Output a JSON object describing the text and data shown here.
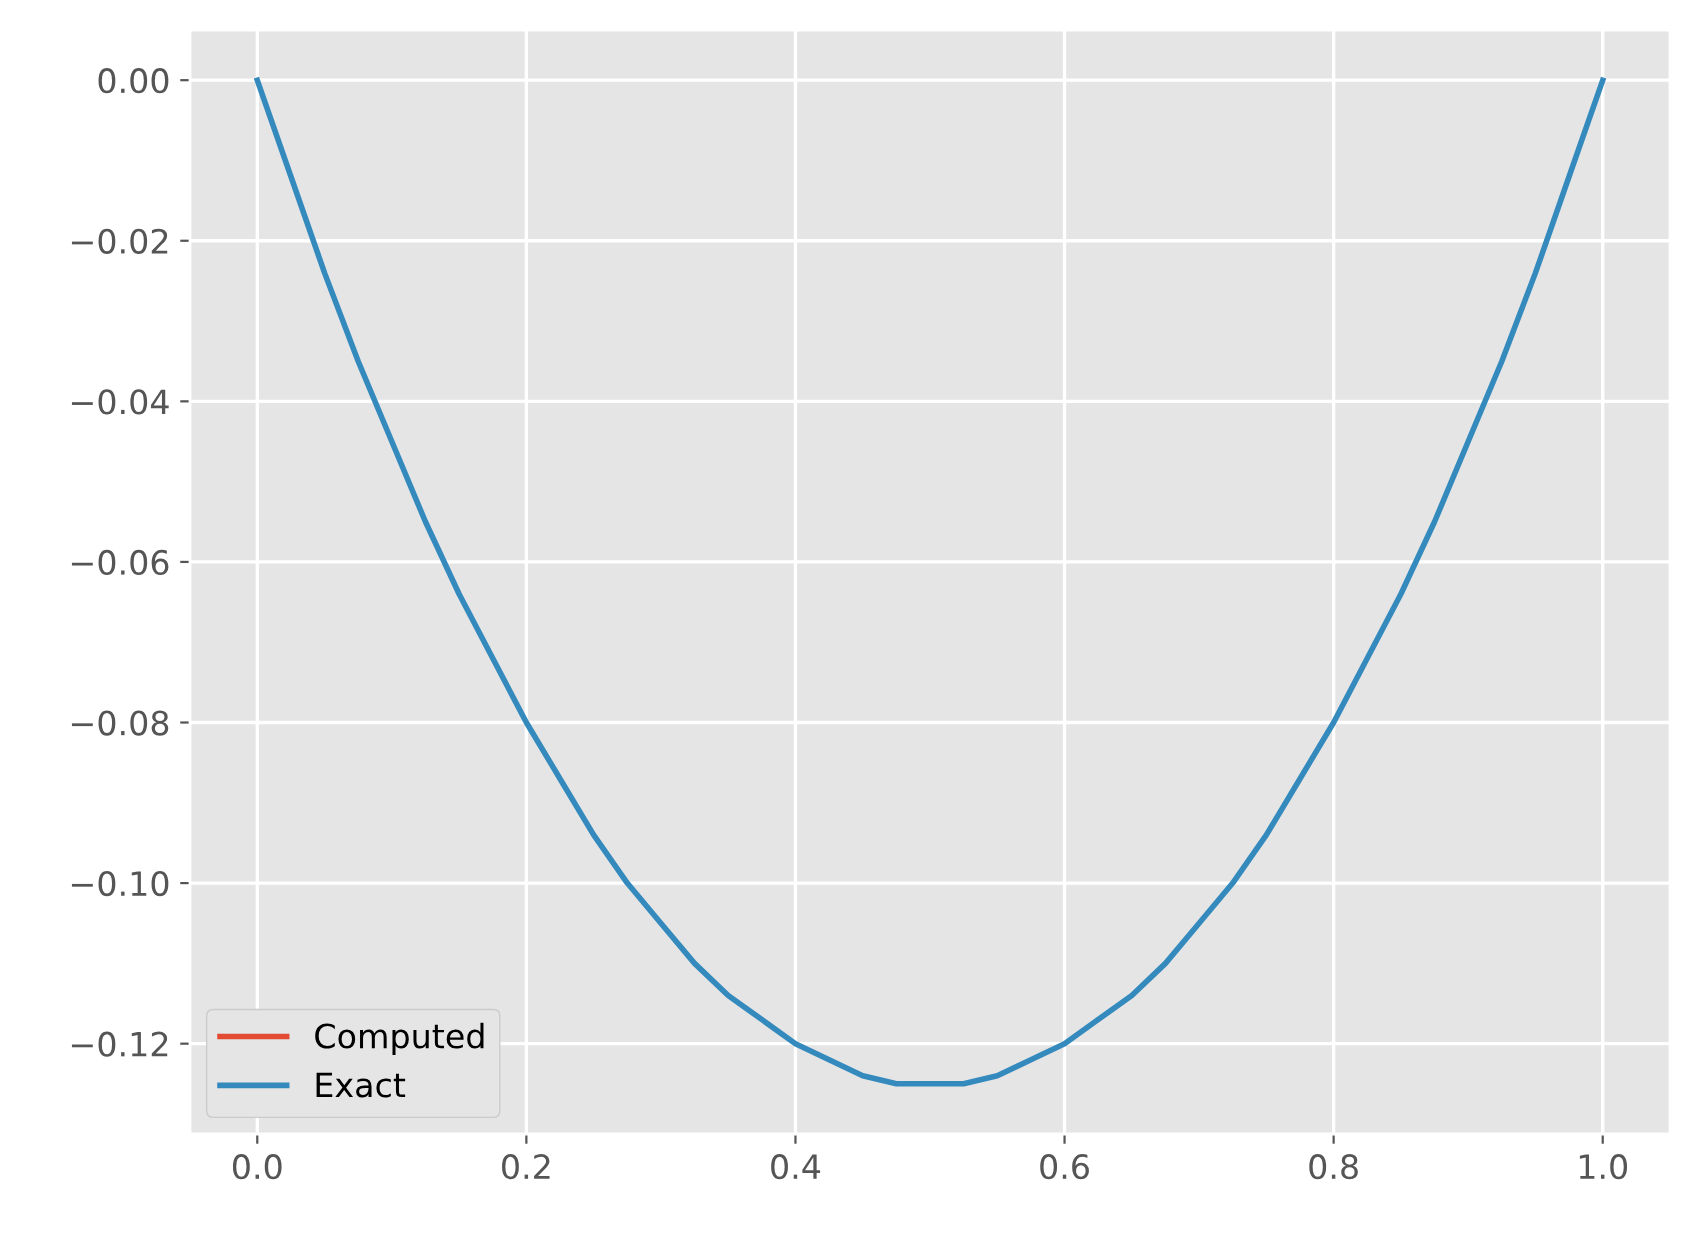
{
  "chart_data": {
    "type": "line",
    "x": [
      0,
      0.025,
      0.05,
      0.075,
      0.1,
      0.125,
      0.15,
      0.175,
      0.2,
      0.225,
      0.25,
      0.275,
      0.3,
      0.325,
      0.35,
      0.375,
      0.4,
      0.425,
      0.45,
      0.475,
      0.5,
      0.525,
      0.55,
      0.575,
      0.6,
      0.625,
      0.65,
      0.675,
      0.7,
      0.725,
      0.75,
      0.775,
      0.8,
      0.825,
      0.85,
      0.875,
      0.9,
      0.925,
      0.95,
      0.975,
      1.0
    ],
    "series": [
      {
        "name": "Computed",
        "color": "#e24a33",
        "values": [
          null,
          null,
          null,
          null,
          null,
          null,
          null,
          null,
          null,
          null,
          null,
          null,
          null,
          null,
          null,
          null,
          null,
          null,
          null,
          null,
          null,
          null,
          null,
          null,
          null,
          null,
          null,
          null,
          null,
          null,
          null,
          null,
          null,
          null,
          null,
          null,
          null,
          null,
          null,
          null,
          null
        ]
      },
      {
        "name": "Exact",
        "color": "#348abd",
        "values": [
          0,
          -0.012,
          -0.024,
          -0.035,
          -0.045,
          -0.055,
          -0.064,
          -0.072,
          -0.08,
          -0.087,
          -0.094,
          -0.1,
          -0.105,
          -0.11,
          -0.114,
          -0.117,
          -0.12,
          -0.122,
          -0.124,
          -0.125,
          -0.125,
          -0.125,
          -0.124,
          -0.122,
          -0.12,
          -0.117,
          -0.114,
          -0.11,
          -0.105,
          -0.1,
          -0.094,
          -0.087,
          -0.08,
          -0.072,
          -0.064,
          -0.055,
          -0.045,
          -0.035,
          -0.024,
          -0.012,
          0
        ]
      }
    ],
    "xlim": [
      -0.05,
      1.05
    ],
    "xticks": [
      {
        "value": 0,
        "label": "0.0"
      },
      {
        "value": 0.2,
        "label": "0.2"
      },
      {
        "value": 0.4,
        "label": "0.4"
      },
      {
        "value": 0.6,
        "label": "0.6"
      },
      {
        "value": 0.8,
        "label": "0.8"
      },
      {
        "value": 1.0,
        "label": "1.0"
      }
    ],
    "ylim": [
      -0.13125,
      0.00625
    ],
    "yticks": [
      {
        "value": 0,
        "label": "0.00"
      },
      {
        "value": -0.02,
        "label": "−0.02"
      },
      {
        "value": -0.04,
        "label": "−0.04"
      },
      {
        "value": -0.06,
        "label": "−0.06"
      },
      {
        "value": -0.08,
        "label": "−0.08"
      },
      {
        "value": -0.1,
        "label": "−0.10"
      },
      {
        "value": -0.12,
        "label": "−0.12"
      }
    ],
    "grid": true,
    "legend": "bottom left",
    "line_style": "solid",
    "marker": "none"
  }
}
